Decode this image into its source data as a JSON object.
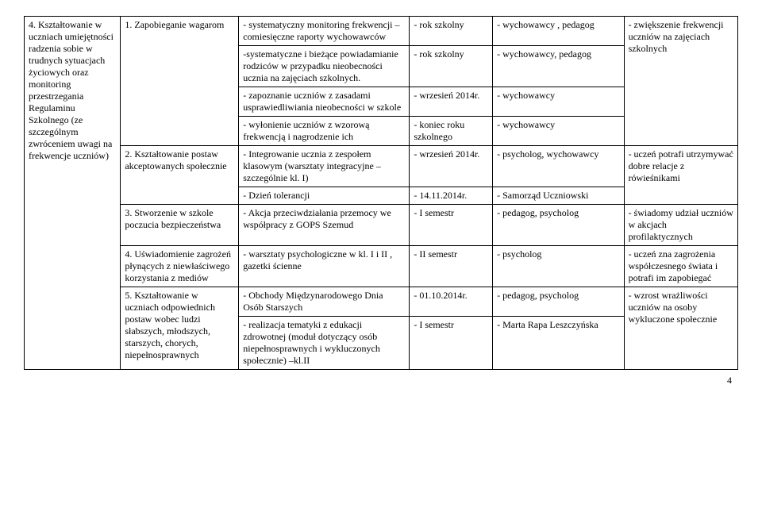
{
  "table": {
    "rows": [
      {
        "c1": "4. Kształtowanie w uczniach umiejętności radzenia sobie w trudnych sytuacjach życiowych oraz monitoring przestrzegania Regulaminu Szkolnego (ze szczególnym zwróceniem uwagi na frekwencje uczniów)",
        "c1_rowspan": 10,
        "c2": "1. Zapobieganie wagarom",
        "c2_rowspan": 4,
        "c3": "- systematyczny monitoring frekwencji – comiesięczne raporty wychowawców",
        "c4": "- rok szkolny",
        "c5": "- wychowawcy , pedagog",
        "c6": "- zwiększenie frekwencji uczniów na zajęciach szkolnych",
        "c6_rowspan": 4
      },
      {
        "c3": "-systematyczne i bieżące powiadamianie rodziców w przypadku nieobecności ucznia na zajęciach szkolnych.",
        "c4": "- rok szkolny",
        "c5": "- wychowawcy, pedagog"
      },
      {
        "c3": "- zapoznanie uczniów z zasadami usprawiedliwiania nieobecności w szkole",
        "c4": "- wrzesień 2014r.",
        "c5": "- wychowawcy"
      },
      {
        "c3": "- wyłonienie uczniów z wzorową frekwencją i nagrodzenie ich",
        "c4": "- koniec roku szkolnego",
        "c5": "- wychowawcy"
      },
      {
        "c2": "2. Kształtowanie postaw akceptowanych społecznie",
        "c2_rowspan": 2,
        "c3": "- Integrowanie ucznia z zespołem klasowym (warsztaty integracyjne – szczególnie kl. I)",
        "c4": "- wrzesień 2014r.",
        "c5": "- psycholog, wychowawcy",
        "c6": "- uczeń potrafi utrzymywać dobre relacje z rówieśnikami",
        "c6_rowspan": 2
      },
      {
        "c3": "- Dzień tolerancji",
        "c4": "- 14.11.2014r.",
        "c5": "- Samorząd Uczniowski"
      },
      {
        "c2": "3. Stworzenie w szkole poczucia bezpieczeństwa",
        "c3": "- Akcja  przeciwdziałania przemocy we współpracy z GOPS Szemud",
        "c4": "- I semestr",
        "c5": "- pedagog, psycholog",
        "c6": "- świadomy udział uczniów w akcjach profilaktycznych"
      },
      {
        "c2": "4. Uświadomienie zagrożeń płynących z niewłaściwego korzystania z mediów",
        "c3": "- warsztaty psychologiczne w kl. I  i II , gazetki ścienne",
        "c4": "- II semestr",
        "c5": "- psycholog",
        "c6": "- uczeń zna zagrożenia współczesnego świata i potrafi im zapobiegać"
      },
      {
        "c2": "5. Kształtowanie w uczniach odpowiednich postaw wobec ludzi słabszych, młodszych, starszych, chorych, niepełnosprawnych",
        "c2_rowspan": 2,
        "c3": "- Obchody Międzynarodowego Dnia Osób Starszych",
        "c4": "- 01.10.2014r.",
        "c5": "- pedagog, psycholog",
        "c6": "- wzrost wrażliwości uczniów na osoby wykluczone społecznie",
        "c6_rowspan": 2
      },
      {
        "c3": "- realizacja tematyki z edukacji zdrowotnej (moduł dotyczący osób niepełnosprawnych i wykluczonych społecznie) –kl.II",
        "c4": "- I semestr",
        "c5": "- Marta Rapa Leszczyńska"
      }
    ]
  },
  "pageNumber": "4"
}
